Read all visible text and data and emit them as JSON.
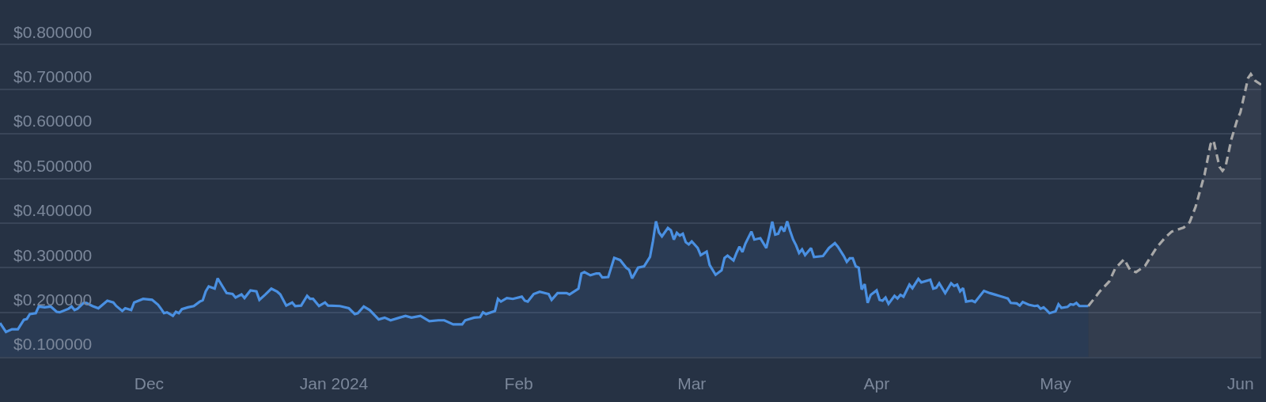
{
  "chart_data": {
    "type": "area",
    "xlim": [
      "2023-11-06",
      "2024-06-04T12:00"
    ],
    "xticks": [
      {
        "value": "2023-12-01",
        "label": "Dec"
      },
      {
        "value": "2024-01-01",
        "label": "Jan 2024"
      },
      {
        "value": "2024-02-01",
        "label": "Feb"
      },
      {
        "value": "2024-03-01",
        "label": "Mar"
      },
      {
        "value": "2024-04-01",
        "label": "Apr"
      },
      {
        "value": "2024-05-01",
        "label": "May"
      },
      {
        "value": "2024-06-01",
        "label": "Jun"
      }
    ],
    "ylim": [
      0.1,
      0.9
    ],
    "yticks": [
      {
        "value": 0.1,
        "label": "$0.100000"
      },
      {
        "value": 0.2,
        "label": "$0.200000"
      },
      {
        "value": 0.3,
        "label": "$0.300000"
      },
      {
        "value": 0.4,
        "label": "$0.400000"
      },
      {
        "value": 0.5,
        "label": "$0.500000"
      },
      {
        "value": 0.6,
        "label": "$0.600000"
      },
      {
        "value": 0.7,
        "label": "$0.700000"
      },
      {
        "value": 0.8,
        "label": "$0.800000"
      }
    ],
    "grid": "y",
    "series": [
      {
        "color": "#4a90e2",
        "x": [
          "2023-11-06",
          "2023-11-07",
          "2023-11-08",
          "2023-11-09",
          "2023-11-10",
          "2023-11-10T12:00",
          "2023-11-11",
          "2023-11-12",
          "2023-11-12T12:00",
          "2023-11-13T12:00",
          "2023-11-14T12:00",
          "2023-11-15T12:00",
          "2023-11-16",
          "2023-11-17T12:00",
          "2023-11-18",
          "2023-11-18T12:00",
          "2023-11-19",
          "2023-11-20",
          "2023-11-20T12:00",
          "2023-11-21T12:00",
          "2023-11-22T12:00",
          "2023-11-24",
          "2023-11-25",
          "2023-11-25T12:00",
          "2023-11-26T12:00",
          "2023-11-27",
          "2023-11-28",
          "2023-11-28T12:00",
          "2023-11-30",
          "2023-12-01T12:00",
          "2023-12-02T12:00",
          "2023-12-03",
          "2023-12-03T12:00",
          "2023-12-04",
          "2023-12-05",
          "2023-12-05T12:00",
          "2023-12-06",
          "2023-12-06T12:00",
          "2023-12-07T12:00",
          "2023-12-08T12:00",
          "2023-12-09T12:00",
          "2023-12-10",
          "2023-12-10T12:00",
          "2023-12-11",
          "2023-12-12",
          "2023-12-12T12:00",
          "2023-12-13",
          "2023-12-14",
          "2023-12-15",
          "2023-12-15T12:00",
          "2023-12-16T12:00",
          "2023-12-17",
          "2023-12-18",
          "2023-12-19",
          "2023-12-19T12:00",
          "2023-12-20T12:00",
          "2023-12-21T12:00",
          "2023-12-22T12:00",
          "2023-12-23",
          "2023-12-24",
          "2023-12-25",
          "2023-12-25T12:00",
          "2023-12-26T12:00",
          "2023-12-27T12:00",
          "2023-12-28",
          "2023-12-28T12:00",
          "2023-12-29T12:00",
          "2023-12-30T12:00",
          "2023-12-31",
          "2024-01-02",
          "2024-01-03T12:00",
          "2024-01-04T12:00",
          "2024-01-05",
          "2024-01-06",
          "2024-01-07",
          "2024-01-08T12:00",
          "2024-01-09T12:00",
          "2024-01-10T12:00",
          "2024-01-12",
          "2024-01-13",
          "2024-01-14",
          "2024-01-15T12:00",
          "2024-01-17",
          "2024-01-18T12:00",
          "2024-01-19T12:00",
          "2024-01-21",
          "2024-01-22T12:00",
          "2024-01-23",
          "2024-01-24T12:00",
          "2024-01-25T12:00",
          "2024-01-26",
          "2024-01-26T12:00",
          "2024-01-28",
          "2024-01-28T12:00",
          "2024-01-29",
          "2024-01-30",
          "2024-01-31",
          "2024-02-01T12:00",
          "2024-02-02",
          "2024-02-02T12:00",
          "2024-02-03T12:00",
          "2024-02-04T12:00",
          "2024-02-06",
          "2024-02-06T12:00",
          "2024-02-07T12:00",
          "2024-02-09",
          "2024-02-09T12:00",
          "2024-02-11",
          "2024-02-11T12:00",
          "2024-02-12",
          "2024-02-13",
          "2024-02-14",
          "2024-02-14T12:00",
          "2024-02-15",
          "2024-02-16",
          "2024-02-17",
          "2024-02-18",
          "2024-02-19",
          "2024-02-19T12:00",
          "2024-02-20",
          "2024-02-21",
          "2024-02-22",
          "2024-02-23",
          "2024-02-23T12:00",
          "2024-02-24",
          "2024-02-24T12:00",
          "2024-02-25",
          "2024-02-26",
          "2024-02-26T12:00",
          "2024-02-27",
          "2024-02-27T12:00",
          "2024-02-28",
          "2024-02-28T12:00",
          "2024-02-29",
          "2024-02-29T12:00",
          "2024-03-01",
          "2024-03-02",
          "2024-03-02T12:00",
          "2024-03-03T12:00",
          "2024-03-04",
          "2024-03-05",
          "2024-03-06",
          "2024-03-06T12:00",
          "2024-03-07",
          "2024-03-08",
          "2024-03-08T12:00",
          "2024-03-09",
          "2024-03-09T12:00",
          "2024-03-10",
          "2024-03-11",
          "2024-03-11T12:00",
          "2024-03-12T12:00",
          "2024-03-13T12:00",
          "2024-03-14",
          "2024-03-14T12:00",
          "2024-03-15",
          "2024-03-15T12:00",
          "2024-03-16",
          "2024-03-16T12:00",
          "2024-03-17",
          "2024-03-17T12:00",
          "2024-03-18",
          "2024-03-18T12:00",
          "2024-03-19",
          "2024-03-19T12:00",
          "2024-03-20",
          "2024-03-21",
          "2024-03-21T12:00",
          "2024-03-23",
          "2024-03-24",
          "2024-03-25",
          "2024-03-25T12:00",
          "2024-03-26T12:00",
          "2024-03-27",
          "2024-03-27T12:00",
          "2024-03-28",
          "2024-03-28T12:00",
          "2024-03-29",
          "2024-03-29T12:00",
          "2024-03-30",
          "2024-03-30T12:00",
          "2024-03-31",
          "2024-04-01",
          "2024-04-01T12:00",
          "2024-04-02",
          "2024-04-02T12:00",
          "2024-04-03",
          "2024-04-04",
          "2024-04-04T12:00",
          "2024-04-05",
          "2024-04-05T12:00",
          "2024-04-06T12:00",
          "2024-04-07",
          "2024-04-08",
          "2024-04-08T12:00",
          "2024-04-10",
          "2024-04-10T12:00",
          "2024-04-11",
          "2024-04-11T12:00",
          "2024-04-12T12:00",
          "2024-04-13T12:00",
          "2024-04-14",
          "2024-04-14T12:00",
          "2024-04-15",
          "2024-04-15T12:00",
          "2024-04-16",
          "2024-04-17",
          "2024-04-17T12:00",
          "2024-04-19",
          "2024-04-20",
          "2024-04-21",
          "2024-04-21T12:00",
          "2024-04-23",
          "2024-04-23T12:00",
          "2024-04-24T12:00",
          "2024-04-25",
          "2024-04-25T12:00",
          "2024-04-26T12:00",
          "2024-04-27T12:00",
          "2024-04-28",
          "2024-04-28T12:00",
          "2024-04-29",
          "2024-04-29T12:00",
          "2024-04-30",
          "2024-05-01",
          "2024-05-01T12:00",
          "2024-05-02",
          "2024-05-03",
          "2024-05-03T12:00",
          "2024-05-04",
          "2024-05-04T12:00",
          "2024-05-05",
          "2024-05-06T12:00"
        ],
        "values": [
          0.176,
          0.156,
          0.162,
          0.162,
          0.183,
          0.185,
          0.196,
          0.198,
          0.213,
          0.211,
          0.213,
          0.201,
          0.2,
          0.208,
          0.213,
          0.205,
          0.208,
          0.221,
          0.221,
          0.214,
          0.209,
          0.226,
          0.222,
          0.214,
          0.203,
          0.209,
          0.205,
          0.222,
          0.23,
          0.228,
          0.217,
          0.208,
          0.198,
          0.2,
          0.192,
          0.201,
          0.198,
          0.207,
          0.211,
          0.214,
          0.224,
          0.227,
          0.247,
          0.258,
          0.253,
          0.276,
          0.265,
          0.243,
          0.241,
          0.233,
          0.24,
          0.232,
          0.249,
          0.247,
          0.228,
          0.24,
          0.253,
          0.246,
          0.24,
          0.215,
          0.222,
          0.214,
          0.215,
          0.237,
          0.23,
          0.23,
          0.214,
          0.222,
          0.215,
          0.214,
          0.209,
          0.196,
          0.198,
          0.213,
          0.205,
          0.184,
          0.188,
          0.182,
          0.188,
          0.192,
          0.188,
          0.192,
          0.18,
          0.182,
          0.182,
          0.173,
          0.173,
          0.182,
          0.188,
          0.189,
          0.2,
          0.196,
          0.203,
          0.23,
          0.224,
          0.232,
          0.23,
          0.235,
          0.226,
          0.224,
          0.241,
          0.246,
          0.241,
          0.228,
          0.243,
          0.243,
          0.24,
          0.253,
          0.287,
          0.29,
          0.283,
          0.287,
          0.287,
          0.278,
          0.279,
          0.322,
          0.317,
          0.3,
          0.295,
          0.276,
          0.3,
          0.303,
          0.324,
          0.36,
          0.404,
          0.379,
          0.37,
          0.389,
          0.384,
          0.363,
          0.378,
          0.372,
          0.376,
          0.357,
          0.352,
          0.359,
          0.344,
          0.328,
          0.336,
          0.306,
          0.284,
          0.294,
          0.322,
          0.327,
          0.316,
          0.333,
          0.347,
          0.335,
          0.354,
          0.381,
          0.363,
          0.366,
          0.344,
          0.372,
          0.403,
          0.374,
          0.376,
          0.392,
          0.381,
          0.404,
          0.382,
          0.363,
          0.35,
          0.333,
          0.341,
          0.328,
          0.344,
          0.324,
          0.326,
          0.344,
          0.355,
          0.347,
          0.326,
          0.313,
          0.321,
          0.321,
          0.303,
          0.3,
          0.251,
          0.263,
          0.221,
          0.239,
          0.249,
          0.228,
          0.226,
          0.233,
          0.219,
          0.237,
          0.231,
          0.239,
          0.235,
          0.262,
          0.254,
          0.275,
          0.267,
          0.273,
          0.253,
          0.255,
          0.265,
          0.243,
          0.265,
          0.259,
          0.262,
          0.247,
          0.254,
          0.224,
          0.226,
          0.223,
          0.248,
          0.243,
          0.239,
          0.237,
          0.231,
          0.221,
          0.22,
          0.215,
          0.223,
          0.217,
          0.214,
          0.215,
          0.208,
          0.211,
          0.205,
          0.198,
          0.202,
          0.218,
          0.21,
          0.212,
          0.218,
          0.217,
          0.221,
          0.214,
          0.214
        ]
      },
      {
        "color": "#a8a8a8",
        "line_style": "dashed",
        "x": [
          "2024-05-06T12:00",
          "2024-05-08T12:00",
          "2024-05-10",
          "2024-05-11",
          "2024-05-12T12:00",
          "2024-05-13T12:00",
          "2024-05-14T12:00",
          "2024-05-16",
          "2024-05-18",
          "2024-05-19T12:00",
          "2024-05-20T12:00",
          "2024-05-22T12:00",
          "2024-05-23T12:00",
          "2024-05-24T12:00",
          "2024-05-26",
          "2024-05-27",
          "2024-05-27T12:00",
          "2024-05-28T12:00",
          "2024-05-29",
          "2024-05-29T12:00",
          "2024-05-30T12:00",
          "2024-05-31T12:00",
          "2024-06-01",
          "2024-06-02T07:00",
          "2024-06-02T18:00",
          "2024-06-03T12:00",
          "2024-06-04T12:00"
        ],
        "values": [
          0.214,
          0.248,
          0.269,
          0.298,
          0.319,
          0.295,
          0.29,
          0.304,
          0.346,
          0.369,
          0.381,
          0.39,
          0.402,
          0.437,
          0.509,
          0.577,
          0.585,
          0.526,
          0.517,
          0.526,
          0.588,
          0.633,
          0.648,
          0.725,
          0.734,
          0.719,
          0.71
        ]
      }
    ]
  }
}
